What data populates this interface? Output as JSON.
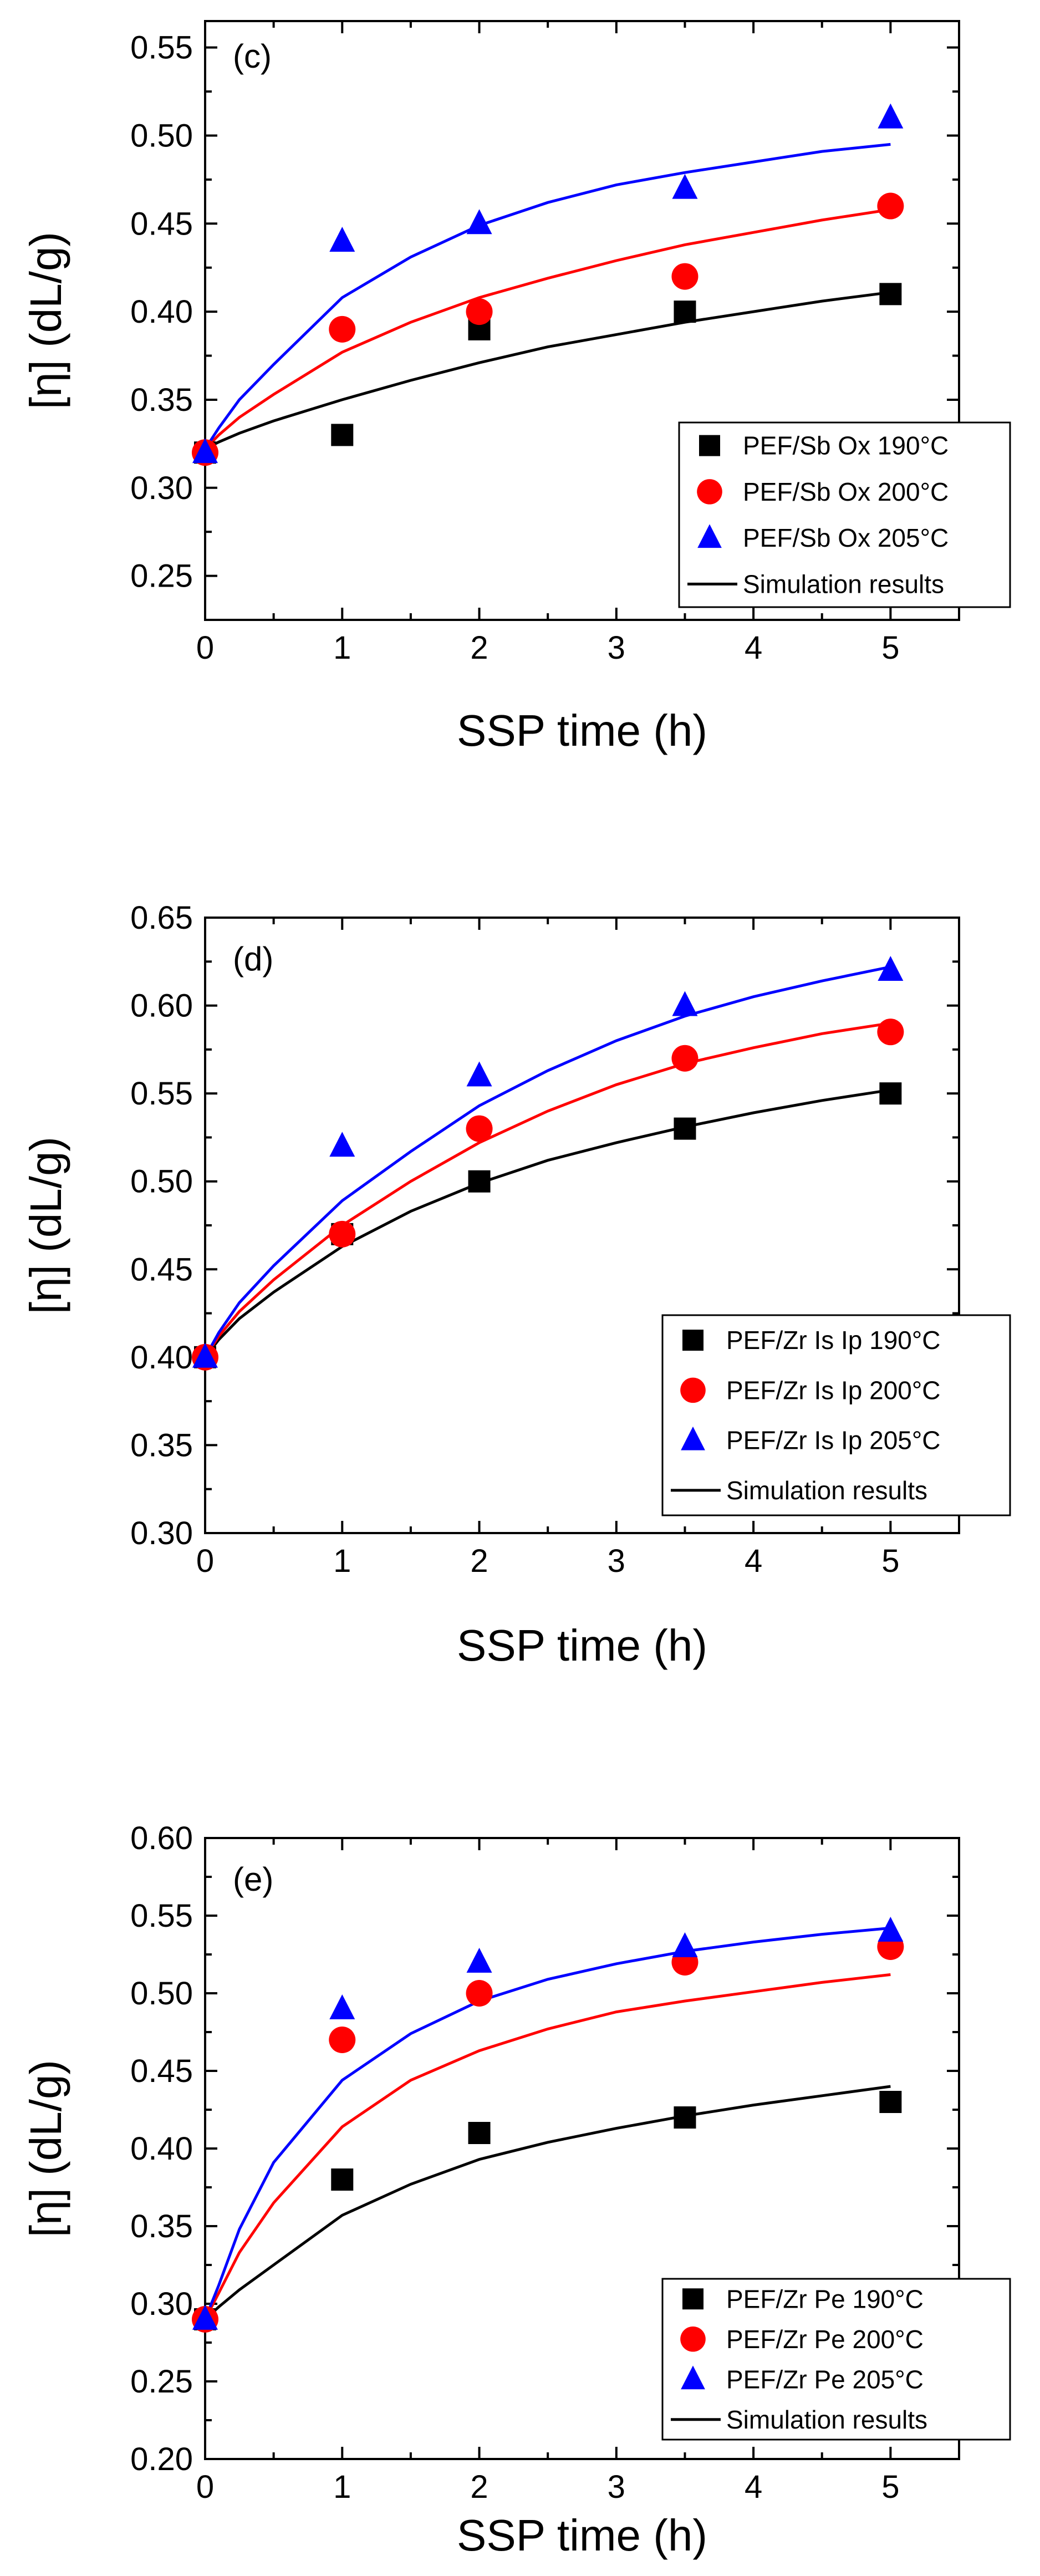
{
  "chart_data": [
    {
      "type": "scatter",
      "panel_label": "(c)",
      "xlabel": "SSP time (h)",
      "ylabel": "[η] (dL/g)",
      "xlim": [
        0,
        5.5
      ],
      "ylim": [
        0.225,
        0.565
      ],
      "xticks": [
        0,
        1,
        2,
        3,
        4,
        5
      ],
      "xtick_labels": [
        "0",
        "1",
        "2",
        "3",
        "4",
        "5"
      ],
      "yticks": [
        0.25,
        0.3,
        0.35,
        0.4,
        0.45,
        0.5,
        0.55
      ],
      "ytick_labels": [
        "0.25",
        "0.30",
        "0.35",
        "0.40",
        "0.45",
        "0.50",
        "0.55"
      ],
      "legend_position": "bottom-right",
      "series": [
        {
          "name": "PEF/Sb Ox 190°C",
          "marker": "square",
          "color": "#000000",
          "x": [
            0,
            1,
            2,
            3.5,
            5
          ],
          "y": [
            0.32,
            0.33,
            0.39,
            0.4,
            0.41
          ]
        },
        {
          "name": "PEF/Sb Ox 200°C",
          "marker": "circle",
          "color": "#ff0000",
          "x": [
            0,
            1,
            2,
            3.5,
            5
          ],
          "y": [
            0.32,
            0.39,
            0.4,
            0.42,
            0.46
          ]
        },
        {
          "name": "PEF/Sb Ox 205°C",
          "marker": "triangle",
          "color": "#0000ff",
          "x": [
            0,
            1,
            2,
            3.5,
            5
          ],
          "y": [
            0.32,
            0.44,
            0.45,
            0.47,
            0.51
          ]
        }
      ],
      "simulation_label": "Simulation results",
      "simulation": [
        {
          "color": "#000000",
          "x": [
            0,
            0.1,
            0.25,
            0.5,
            1,
            1.5,
            2,
            2.5,
            3,
            3.5,
            4,
            4.5,
            5
          ],
          "y": [
            0.322,
            0.326,
            0.331,
            0.338,
            0.35,
            0.361,
            0.371,
            0.38,
            0.387,
            0.394,
            0.4,
            0.406,
            0.411
          ]
        },
        {
          "color": "#ff0000",
          "x": [
            0,
            0.1,
            0.25,
            0.5,
            1,
            1.5,
            2,
            2.5,
            3,
            3.5,
            4,
            4.5,
            5
          ],
          "y": [
            0.322,
            0.33,
            0.34,
            0.353,
            0.377,
            0.394,
            0.408,
            0.419,
            0.429,
            0.438,
            0.445,
            0.452,
            0.458
          ]
        },
        {
          "color": "#0000ff",
          "x": [
            0,
            0.1,
            0.25,
            0.5,
            1,
            1.5,
            2,
            2.5,
            3,
            3.5,
            4,
            4.5,
            5
          ],
          "y": [
            0.322,
            0.334,
            0.35,
            0.37,
            0.408,
            0.431,
            0.449,
            0.462,
            0.472,
            0.479,
            0.485,
            0.491,
            0.495
          ]
        }
      ]
    },
    {
      "type": "scatter",
      "panel_label": "(d)",
      "xlabel": "SSP time (h)",
      "ylabel": "[η] (dL/g)",
      "xlim": [
        0,
        5.5
      ],
      "ylim": [
        0.3,
        0.65
      ],
      "xticks": [
        0,
        1,
        2,
        3,
        4,
        5
      ],
      "xtick_labels": [
        "0",
        "1",
        "2",
        "3",
        "4",
        "5"
      ],
      "yticks": [
        0.3,
        0.35,
        0.4,
        0.45,
        0.5,
        0.55,
        0.6,
        0.65
      ],
      "ytick_labels": [
        "0.30",
        "0.35",
        "0.40",
        "0.45",
        "0.50",
        "0.55",
        "0.60",
        "0.65"
      ],
      "legend_position": "bottom-right",
      "series": [
        {
          "name": "PEF/Zr Is Ip 190°C",
          "marker": "square",
          "color": "#000000",
          "x": [
            0,
            1,
            2,
            3.5,
            5
          ],
          "y": [
            0.4,
            0.47,
            0.5,
            0.53,
            0.55
          ]
        },
        {
          "name": "PEF/Zr Is Ip 200°C",
          "marker": "circle",
          "color": "#ff0000",
          "x": [
            0,
            1,
            2,
            3.5,
            5
          ],
          "y": [
            0.4,
            0.47,
            0.53,
            0.57,
            0.585
          ]
        },
        {
          "name": "PEF/Zr Is Ip 205°C",
          "marker": "triangle",
          "color": "#0000ff",
          "x": [
            0,
            1,
            2,
            3.5,
            5
          ],
          "y": [
            0.4,
            0.52,
            0.56,
            0.6,
            0.62
          ]
        }
      ],
      "simulation_label": "Simulation results",
      "simulation": [
        {
          "color": "#000000",
          "x": [
            0,
            0.1,
            0.25,
            0.5,
            1,
            1.5,
            2,
            2.5,
            3,
            3.5,
            4,
            4.5,
            5
          ],
          "y": [
            0.4,
            0.41,
            0.422,
            0.437,
            0.463,
            0.483,
            0.499,
            0.512,
            0.522,
            0.531,
            0.539,
            0.546,
            0.552
          ]
        },
        {
          "color": "#ff0000",
          "x": [
            0,
            0.1,
            0.25,
            0.5,
            1,
            1.5,
            2,
            2.5,
            3,
            3.5,
            4,
            4.5,
            5
          ],
          "y": [
            0.4,
            0.412,
            0.426,
            0.444,
            0.475,
            0.5,
            0.522,
            0.54,
            0.555,
            0.567,
            0.576,
            0.584,
            0.59
          ]
        },
        {
          "color": "#0000ff",
          "x": [
            0,
            0.1,
            0.25,
            0.5,
            1,
            1.5,
            2,
            2.5,
            3,
            3.5,
            4,
            4.5,
            5
          ],
          "y": [
            0.4,
            0.414,
            0.431,
            0.452,
            0.489,
            0.517,
            0.543,
            0.563,
            0.58,
            0.594,
            0.605,
            0.614,
            0.622
          ]
        }
      ]
    },
    {
      "type": "scatter",
      "panel_label": "(e)",
      "xlabel": "SSP time (h)",
      "ylabel": "[η] (dL/g)",
      "xlim": [
        0,
        5.5
      ],
      "ylim": [
        0.2,
        0.6
      ],
      "xticks": [
        0,
        1,
        2,
        3,
        4,
        5
      ],
      "xtick_labels": [
        "0",
        "1",
        "2",
        "3",
        "4",
        "5"
      ],
      "yticks": [
        0.2,
        0.25,
        0.3,
        0.35,
        0.4,
        0.45,
        0.5,
        0.55,
        0.6
      ],
      "ytick_labels": [
        "0.20",
        "0.25",
        "0.30",
        "0.35",
        "0.40",
        "0.45",
        "0.50",
        "0.55",
        "0.60"
      ],
      "legend_position": "bottom-right",
      "series": [
        {
          "name": "PEF/Zr Pe 190°C",
          "marker": "square",
          "color": "#000000",
          "x": [
            0,
            1,
            2,
            3.5,
            5
          ],
          "y": [
            0.29,
            0.38,
            0.41,
            0.42,
            0.43
          ]
        },
        {
          "name": "PEF/Zr Pe 200°C",
          "marker": "circle",
          "color": "#ff0000",
          "x": [
            0,
            1,
            2,
            3.5,
            5
          ],
          "y": [
            0.29,
            0.47,
            0.5,
            0.52,
            0.53
          ]
        },
        {
          "name": "PEF/Zr Pe 205°C",
          "marker": "triangle",
          "color": "#0000ff",
          "x": [
            0,
            1,
            2,
            3.5,
            5
          ],
          "y": [
            0.29,
            0.49,
            0.52,
            0.53,
            0.54
          ]
        }
      ],
      "simulation_label": "Simulation results",
      "simulation": [
        {
          "color": "#000000",
          "x": [
            0,
            0.1,
            0.25,
            0.5,
            1,
            1.5,
            2,
            2.5,
            3,
            3.5,
            4,
            4.5,
            5
          ],
          "y": [
            0.29,
            0.298,
            0.309,
            0.325,
            0.357,
            0.377,
            0.393,
            0.404,
            0.413,
            0.421,
            0.428,
            0.434,
            0.44
          ]
        },
        {
          "color": "#ff0000",
          "x": [
            0,
            0.1,
            0.25,
            0.5,
            1,
            1.5,
            2,
            2.5,
            3,
            3.5,
            4,
            4.5,
            5
          ],
          "y": [
            0.29,
            0.307,
            0.333,
            0.365,
            0.414,
            0.444,
            0.463,
            0.477,
            0.488,
            0.495,
            0.501,
            0.507,
            0.512
          ]
        },
        {
          "color": "#0000ff",
          "x": [
            0,
            0.1,
            0.25,
            0.5,
            1,
            1.5,
            2,
            2.5,
            3,
            3.5,
            4,
            4.5,
            5
          ],
          "y": [
            0.29,
            0.312,
            0.348,
            0.391,
            0.444,
            0.474,
            0.495,
            0.509,
            0.519,
            0.527,
            0.533,
            0.538,
            0.542
          ]
        }
      ]
    }
  ]
}
